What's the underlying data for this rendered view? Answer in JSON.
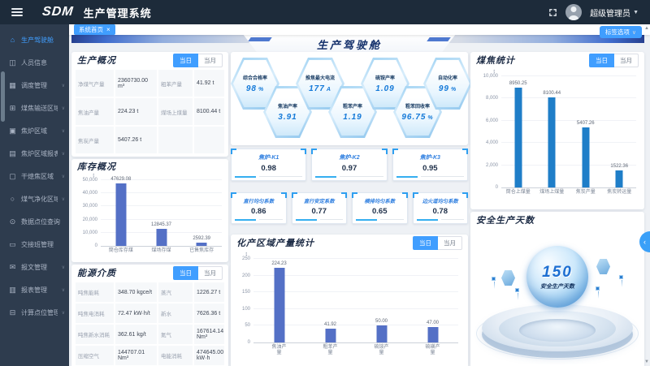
{
  "accent": "#409eff",
  "header": {
    "logo": "SDM",
    "title": "生产管理系统",
    "user": "超级管理员"
  },
  "tabbar": {
    "active_tab": "系统首页",
    "close": "×",
    "options_button": "标签选项"
  },
  "toggle": {
    "day": "当日",
    "month": "当月"
  },
  "sidebar": {
    "items": [
      {
        "label": "生产驾驶舱",
        "icon": "home",
        "active": true,
        "arrow": false
      },
      {
        "label": "人员信息",
        "icon": "users",
        "active": false,
        "arrow": false
      },
      {
        "label": "调度管理",
        "icon": "schedule",
        "active": false,
        "arrow": true
      },
      {
        "label": "煤焦输送区域",
        "icon": "transport",
        "active": false,
        "arrow": true
      },
      {
        "label": "焦炉区域",
        "icon": "oven",
        "active": false,
        "arrow": true
      },
      {
        "label": "焦炉区域报表",
        "icon": "ovenreport",
        "active": false,
        "arrow": true
      },
      {
        "label": "干熄焦区域",
        "icon": "cdq",
        "active": false,
        "arrow": true
      },
      {
        "label": "煤气净化区域",
        "icon": "gas",
        "active": false,
        "arrow": true
      },
      {
        "label": "数据点位查询",
        "icon": "datapoint",
        "active": false,
        "arrow": false
      },
      {
        "label": "交接班管理",
        "icon": "shift",
        "active": false,
        "arrow": false
      },
      {
        "label": "报文管理",
        "icon": "message",
        "active": false,
        "arrow": true
      },
      {
        "label": "报表管理",
        "icon": "report",
        "active": false,
        "arrow": true
      },
      {
        "label": "计算点位管理",
        "icon": "calc",
        "active": false,
        "arrow": true
      }
    ]
  },
  "banner": {
    "title": "生产驾驶舱"
  },
  "production_overview": {
    "title": "生产概况",
    "fields": [
      {
        "label": "净煤气产量",
        "value": "2360730.00 m³"
      },
      {
        "label": "粗苯产量",
        "value": "41.92 t"
      },
      {
        "label": "焦油产量",
        "value": "224.23 t"
      },
      {
        "label": "煤场上煤量",
        "value": "8100.44 t"
      },
      {
        "label": "焦炭产量",
        "value": "5407.26 t"
      }
    ]
  },
  "energy": {
    "title": "能源介质",
    "fields": [
      {
        "label": "吨焦能耗",
        "value": "348.70 kgce/t"
      },
      {
        "label": "蒸汽",
        "value": "1226.27 t"
      },
      {
        "label": "吨焦电消耗",
        "value": "72.47 kW·h/t"
      },
      {
        "label": "新水",
        "value": "7626.36 t"
      },
      {
        "label": "吨焦新水消耗",
        "value": "362.61 kg/t"
      },
      {
        "label": "氮气",
        "value": "167614.14 Nm³"
      },
      {
        "label": "压缩空气",
        "value": "144707.01 Nm³"
      },
      {
        "label": "电能消耗",
        "value": "474645.00 kW·h"
      }
    ]
  },
  "hexagons": [
    {
      "label": "综合合格率",
      "value": "98",
      "unit": "%"
    },
    {
      "label": "焦油产率",
      "value": "3.91",
      "unit": ""
    },
    {
      "label": "推焦最大电流",
      "value": "177",
      "unit": "A"
    },
    {
      "label": "粗苯产率",
      "value": "1.19",
      "unit": ""
    },
    {
      "label": "硫铵产率",
      "value": "1.09",
      "unit": ""
    },
    {
      "label": "粗苯回收率",
      "value": "96.75",
      "unit": "%"
    },
    {
      "label": "自动化率",
      "value": "99",
      "unit": "%"
    }
  ],
  "oven_cards": [
    {
      "label": "焦炉-K1",
      "value": "0.98"
    },
    {
      "label": "焦炉-K2",
      "value": "0.97"
    },
    {
      "label": "焦炉-K3",
      "value": "0.95"
    }
  ],
  "coef_cards": [
    {
      "label": "直行均匀系数",
      "value": "0.86"
    },
    {
      "label": "直行安定系数",
      "value": "0.77"
    },
    {
      "label": "横排均匀系数",
      "value": "0.65"
    },
    {
      "label": "边火道均匀系数",
      "value": "0.78"
    }
  ],
  "safety": {
    "title": "安全生产天数",
    "days": "150",
    "caption": "安全生产天数"
  },
  "chart_data": [
    {
      "type": "bar",
      "title": "库存概况",
      "unit": "t",
      "color": "#5470c6",
      "ylim": [
        0,
        50000
      ],
      "yticks": [
        0,
        10000,
        20000,
        30000,
        40000,
        50000
      ],
      "ytick_labels": [
        "0",
        "10,000",
        "20,000",
        "30,000",
        "40,000",
        "50,000"
      ],
      "categories": [
        "筒仓库存煤",
        "煤场存煤",
        "已售焦库存"
      ],
      "values": [
        47629.08,
        12845.37,
        2592.39
      ],
      "value_labels": [
        "47629.08",
        "12845.37",
        "2592.39"
      ],
      "grid": true,
      "legend": "none"
    },
    {
      "type": "bar",
      "title": "化产区域产量统计",
      "unit": "t",
      "color": "#5470c6",
      "ylim": [
        0,
        250
      ],
      "yticks": [
        0,
        50,
        100,
        150,
        200,
        250
      ],
      "ytick_labels": [
        "0",
        "50",
        "100",
        "150",
        "200",
        "250"
      ],
      "categories": [
        "焦油产量",
        "粗苯产量",
        "硫铵产量",
        "硫磺产量"
      ],
      "values": [
        224.23,
        41.92,
        50,
        47
      ],
      "value_labels": [
        "224.23",
        "41.92",
        "50.00",
        "47.00"
      ],
      "grid": true,
      "legend": "none"
    },
    {
      "type": "bar",
      "title": "煤焦统计",
      "unit": "t",
      "color": "#1f7ec8",
      "ylim": [
        0,
        10000
      ],
      "yticks": [
        0,
        2000,
        4000,
        6000,
        8000,
        10000
      ],
      "ytick_labels": [
        "0",
        "2,000",
        "4,000",
        "6,000",
        "8,000",
        "10,000"
      ],
      "categories": [
        "筒仓上煤量",
        "煤场上煤量",
        "焦炭产量",
        "焦炭转运量"
      ],
      "values": [
        8950.25,
        8100.44,
        5407.26,
        1522.36
      ],
      "value_labels": [
        "8950.25",
        "8100.44",
        "5407.26",
        "1522.36"
      ],
      "grid": true,
      "legend": "none"
    }
  ]
}
